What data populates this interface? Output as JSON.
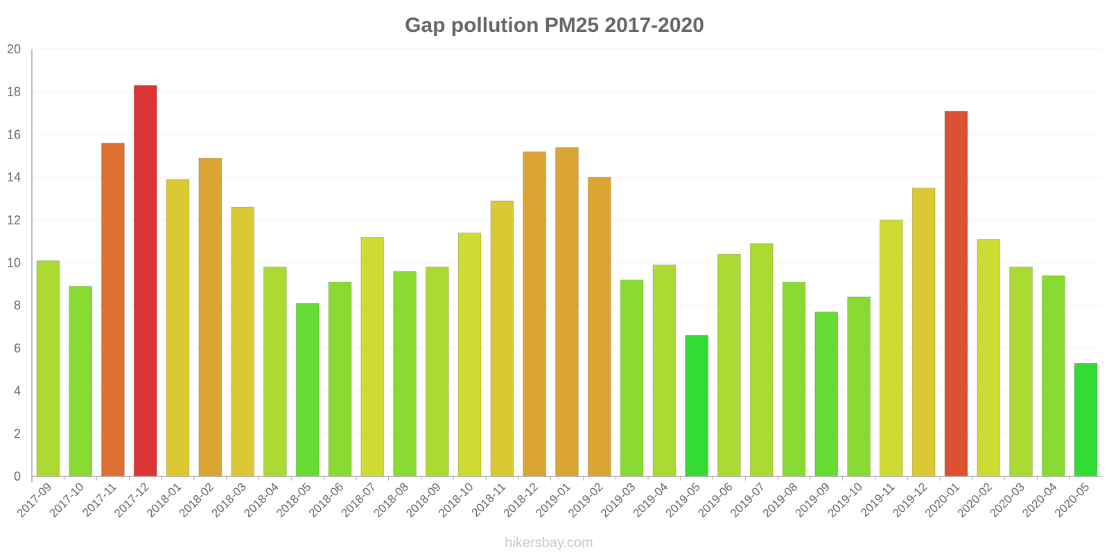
{
  "chart_data": {
    "type": "bar",
    "title": "Gap pollution PM25 2017-2020",
    "xlabel": "",
    "ylabel": "",
    "ylim": [
      0,
      20
    ],
    "yticks": [
      0,
      2,
      4,
      6,
      8,
      10,
      12,
      14,
      16,
      18,
      20
    ],
    "categories": [
      "2017-09",
      "2017-10",
      "2017-11",
      "2017-12",
      "2018-01",
      "2018-02",
      "2018-03",
      "2018-04",
      "2018-05",
      "2018-06",
      "2018-07",
      "2018-08",
      "2018-09",
      "2018-10",
      "2018-11",
      "2018-12",
      "2019-01",
      "2019-02",
      "2019-03",
      "2019-04",
      "2019-05",
      "2019-06",
      "2019-07",
      "2019-08",
      "2019-09",
      "2019-10",
      "2019-11",
      "2019-12",
      "2020-01",
      "2020-02",
      "2020-03",
      "2020-04",
      "2020-05"
    ],
    "values": [
      10.1,
      8.9,
      15.6,
      18.3,
      13.9,
      14.9,
      12.6,
      9.8,
      8.1,
      9.1,
      11.2,
      9.6,
      9.8,
      11.4,
      12.9,
      15.2,
      15.4,
      14.0,
      9.2,
      9.9,
      6.6,
      10.4,
      10.9,
      9.1,
      7.7,
      8.4,
      12.0,
      13.5,
      17.1,
      11.1,
      9.8,
      9.4,
      5.3
    ],
    "colors": [
      "#abdb33",
      "#89db33",
      "#dd7033",
      "#dc3434",
      "#dbc833",
      "#dba533",
      "#dbc833",
      "#abdb33",
      "#67db33",
      "#89db33",
      "#cddb33",
      "#89db33",
      "#abdb33",
      "#cddb33",
      "#dbc833",
      "#dba533",
      "#dba533",
      "#dba533",
      "#89db33",
      "#abdb33",
      "#33db33",
      "#abdb33",
      "#abdb33",
      "#89db33",
      "#67db33",
      "#89db33",
      "#cddb33",
      "#dbc833",
      "#dc5034",
      "#cddb33",
      "#abdb33",
      "#89db33",
      "#33db33"
    ],
    "grid": true,
    "legend": "none"
  },
  "credit": "hikersbay.com"
}
